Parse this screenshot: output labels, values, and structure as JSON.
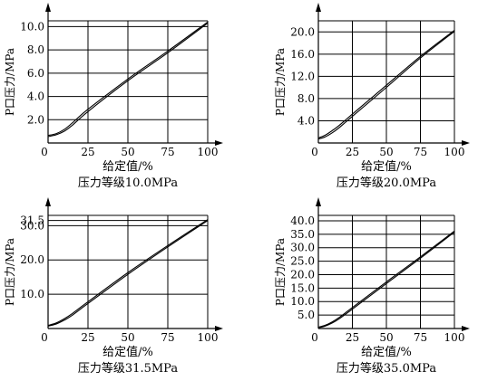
{
  "chart_data": [
    {
      "type": "line",
      "title": "压力等级10.0MPa",
      "xlabel": "给定值/%",
      "ylabel": "P口压力/MPa",
      "xlim": [
        0,
        100
      ],
      "ylim": [
        0,
        10.5
      ],
      "x_ticks": [
        "0",
        "25",
        "50",
        "75",
        "100"
      ],
      "y_ticks": [
        "2.0",
        "4.0",
        "6.0",
        "8.0",
        "10.0"
      ],
      "y_tick_values": [
        2,
        4,
        6,
        8,
        10
      ],
      "grid": true,
      "series": [
        {
          "x": [
            0,
            5,
            10,
            15,
            25,
            50,
            75,
            100
          ],
          "y": [
            0.65,
            0.8,
            1.15,
            1.7,
            2.9,
            5.5,
            7.9,
            10.4
          ]
        },
        {
          "x": [
            0,
            5,
            10,
            15,
            25,
            50,
            75,
            100
          ],
          "y": [
            0.55,
            0.7,
            1.0,
            1.5,
            2.7,
            5.35,
            7.75,
            10.3
          ]
        }
      ]
    },
    {
      "type": "line",
      "title": "压力等级20.0MPa",
      "xlabel": "给定值/%",
      "ylabel": "P口压力/MPa",
      "xlim": [
        0,
        100
      ],
      "ylim": [
        0,
        22
      ],
      "x_ticks": [
        "0",
        "25",
        "50",
        "75",
        "100"
      ],
      "y_ticks": [
        "4.0",
        "8.0",
        "12.0",
        "16.0",
        "20.0"
      ],
      "y_tick_values": [
        4,
        8,
        12,
        16,
        20
      ],
      "grid": true,
      "series": [
        {
          "x": [
            0,
            5,
            10,
            15,
            25,
            50,
            75,
            100
          ],
          "y": [
            0.9,
            1.4,
            2.2,
            3.1,
            5.2,
            10.4,
            15.6,
            20.3
          ]
        },
        {
          "x": [
            0,
            5,
            10,
            15,
            25,
            50,
            75,
            100
          ],
          "y": [
            0.7,
            1.1,
            1.8,
            2.7,
            4.8,
            10.0,
            15.3,
            20.1
          ]
        }
      ]
    },
    {
      "type": "line",
      "title": "压力等级31.5MPa",
      "xlabel": "给定值/%",
      "ylabel": "P口压力/MPa",
      "xlim": [
        0,
        100
      ],
      "ylim": [
        0,
        33
      ],
      "x_ticks": [
        "0",
        "25",
        "50",
        "75",
        "100"
      ],
      "y_ticks": [
        "10.0",
        "20.0",
        "30.0",
        "31.5"
      ],
      "y_tick_values": [
        10,
        20,
        30,
        31.5
      ],
      "grid": true,
      "series": [
        {
          "x": [
            0,
            5,
            10,
            15,
            25,
            50,
            75,
            100
          ],
          "y": [
            0.9,
            1.6,
            2.8,
            4.3,
            7.8,
            16.3,
            24.2,
            31.8
          ]
        },
        {
          "x": [
            0,
            5,
            10,
            15,
            25,
            50,
            75,
            100
          ],
          "y": [
            0.7,
            1.3,
            2.4,
            3.8,
            7.3,
            15.8,
            23.8,
            31.5
          ]
        }
      ]
    },
    {
      "type": "line",
      "title": "压力等级35.0MPa",
      "xlabel": "给定值/%",
      "ylabel": "P口压力/MPa",
      "xlim": [
        0,
        100
      ],
      "ylim": [
        0,
        42
      ],
      "x_ticks": [
        "0",
        "25",
        "50",
        "75",
        "100"
      ],
      "y_ticks": [
        "5.0",
        "10.0",
        "15.0",
        "20.0",
        "25.0",
        "30.0",
        "35.0",
        "40.0"
      ],
      "y_tick_values": [
        5,
        10,
        15,
        20,
        25,
        30,
        35,
        40
      ],
      "grid": true,
      "series": [
        {
          "x": [
            0,
            5,
            10,
            15,
            25,
            50,
            75,
            100
          ],
          "y": [
            0.5,
            1.2,
            2.4,
            4.0,
            7.8,
            17.3,
            26.6,
            36.2
          ]
        },
        {
          "x": [
            0,
            5,
            10,
            15,
            25,
            50,
            75,
            100
          ],
          "y": [
            0.3,
            0.9,
            2.0,
            3.5,
            7.2,
            16.7,
            26.1,
            35.8
          ]
        }
      ]
    }
  ]
}
